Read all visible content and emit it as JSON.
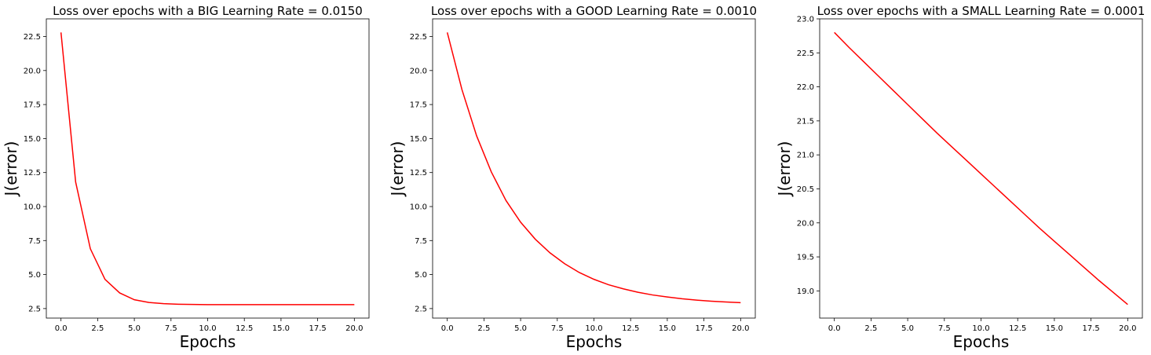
{
  "chart_data": [
    {
      "type": "line",
      "title": "Loss over epochs with a BIG Learning Rate = 0.0150",
      "xlabel": "Epochs",
      "ylabel": "J(error)",
      "xlim": [
        -1,
        21
      ],
      "ylim": [
        1.8,
        23.8
      ],
      "xticks": [
        0,
        2.5,
        5,
        7.5,
        10,
        12.5,
        15,
        17.5,
        20
      ],
      "xtick_labels": [
        "0.0",
        "2.5",
        "5.0",
        "7.5",
        "10.0",
        "12.5",
        "15.0",
        "17.5",
        "20.0"
      ],
      "yticks": [
        2.5,
        5,
        7.5,
        10,
        12.5,
        15,
        17.5,
        20,
        22.5
      ],
      "ytick_labels": [
        "2.5",
        "5.0",
        "7.5",
        "10.0",
        "12.5",
        "15.0",
        "17.5",
        "20.0",
        "22.5"
      ],
      "grid": false,
      "line_color": "#ff0000",
      "series": [
        {
          "x": [
            0,
            1,
            2,
            3,
            4,
            5,
            6,
            7,
            8,
            9,
            10,
            11,
            12,
            13,
            14,
            15,
            16,
            17,
            18,
            19,
            20
          ],
          "values": [
            22.8,
            11.8,
            6.9,
            4.65,
            3.65,
            3.15,
            2.95,
            2.86,
            2.82,
            2.8,
            2.79,
            2.79,
            2.79,
            2.79,
            2.79,
            2.79,
            2.79,
            2.79,
            2.79,
            2.79,
            2.79
          ]
        }
      ]
    },
    {
      "type": "line",
      "title": "Loss over epochs with a GOOD Learning Rate = 0.0010",
      "xlabel": "Epochs",
      "ylabel": "J(error)",
      "xlim": [
        -1,
        21
      ],
      "ylim": [
        1.8,
        23.8
      ],
      "xticks": [
        0,
        2.5,
        5,
        7.5,
        10,
        12.5,
        15,
        17.5,
        20
      ],
      "xtick_labels": [
        "0.0",
        "2.5",
        "5.0",
        "7.5",
        "10.0",
        "12.5",
        "15.0",
        "17.5",
        "20.0"
      ],
      "yticks": [
        2.5,
        5,
        7.5,
        10,
        12.5,
        15,
        17.5,
        20,
        22.5
      ],
      "ytick_labels": [
        "2.5",
        "5.0",
        "7.5",
        "10.0",
        "12.5",
        "15.0",
        "17.5",
        "20.0",
        "22.5"
      ],
      "grid": false,
      "line_color": "#ff0000",
      "series": [
        {
          "x": [
            0,
            1,
            2,
            3,
            4,
            5,
            6,
            7,
            8,
            9,
            10,
            11,
            12,
            13,
            14,
            15,
            16,
            17,
            18,
            19,
            20
          ],
          "values": [
            22.8,
            18.6,
            15.2,
            12.55,
            10.45,
            8.85,
            7.6,
            6.6,
            5.8,
            5.15,
            4.65,
            4.25,
            3.95,
            3.7,
            3.5,
            3.35,
            3.22,
            3.12,
            3.04,
            2.98,
            2.93
          ]
        }
      ]
    },
    {
      "type": "line",
      "title": "Loss over epochs with a SMALL Learning Rate = 0.0001",
      "xlabel": "Epochs",
      "ylabel": "J(error)",
      "xlim": [
        -1,
        21
      ],
      "ylim": [
        18.6,
        23.0
      ],
      "xticks": [
        0,
        2.5,
        5,
        7.5,
        10,
        12.5,
        15,
        17.5,
        20
      ],
      "xtick_labels": [
        "0.0",
        "2.5",
        "5.0",
        "7.5",
        "10.0",
        "12.5",
        "15.0",
        "17.5",
        "20.0"
      ],
      "yticks": [
        19.0,
        19.5,
        20.0,
        20.5,
        21.0,
        21.5,
        22.0,
        22.5,
        23.0
      ],
      "ytick_labels": [
        "19.0",
        "19.5",
        "20.0",
        "20.5",
        "21.0",
        "21.5",
        "22.0",
        "22.5",
        "23.0"
      ],
      "grid": false,
      "line_color": "#ff0000",
      "series": [
        {
          "x": [
            0,
            1,
            2,
            3,
            4,
            5,
            6,
            7,
            8,
            9,
            10,
            11,
            12,
            13,
            14,
            15,
            16,
            17,
            18,
            19,
            20
          ],
          "values": [
            22.8,
            22.58,
            22.37,
            22.16,
            21.95,
            21.74,
            21.53,
            21.32,
            21.12,
            20.92,
            20.72,
            20.52,
            20.32,
            20.12,
            19.92,
            19.73,
            19.54,
            19.35,
            19.16,
            18.98,
            18.8
          ]
        }
      ]
    }
  ]
}
